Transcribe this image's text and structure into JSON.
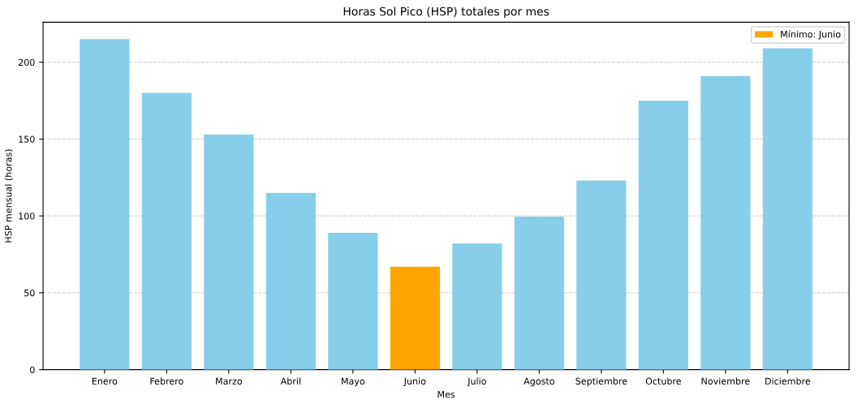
{
  "chart_data": {
    "type": "bar",
    "title": "Horas Sol Pico (HSP) totales por mes",
    "xlabel": "Mes",
    "ylabel": "HSP mensual (horas)",
    "categories": [
      "Enero",
      "Febrero",
      "Marzo",
      "Abril",
      "Mayo",
      "Junio",
      "Julio",
      "Agosto",
      "Septiembre",
      "Octubre",
      "Noviembre",
      "Diciembre"
    ],
    "series": [
      {
        "color": "#87ceeb",
        "values": [
          215,
          180,
          153,
          115,
          89,
          null,
          82,
          99.5,
          123,
          175,
          191,
          209
        ]
      },
      {
        "name": "Mínimo: Junio",
        "color": "#ffa500",
        "values": [
          null,
          null,
          null,
          null,
          null,
          67,
          null,
          null,
          null,
          null,
          null,
          null
        ]
      }
    ],
    "ylim": [
      0,
      226
    ],
    "yticks": [
      0,
      50,
      100,
      150,
      200
    ],
    "grid": "y",
    "legend": "top right"
  }
}
